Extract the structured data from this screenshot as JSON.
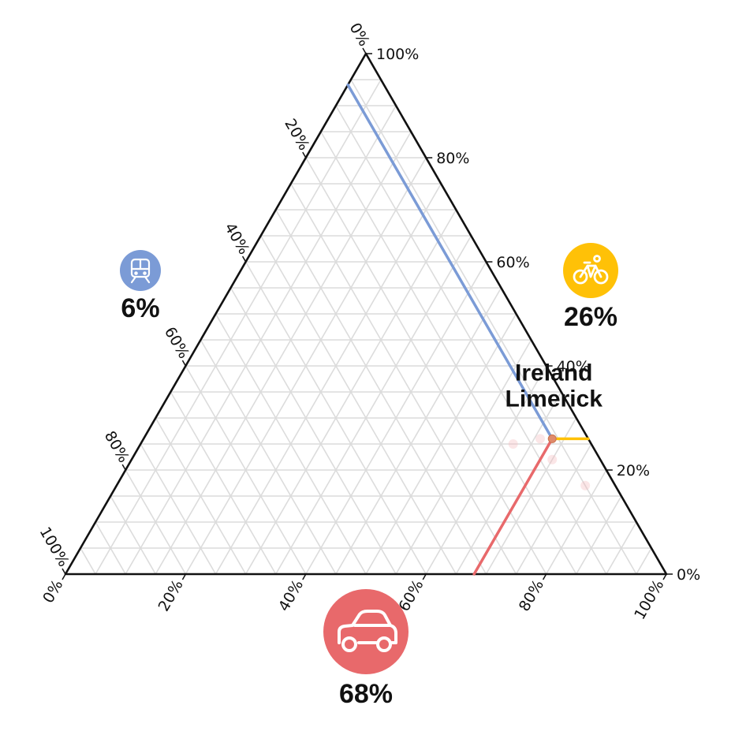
{
  "chart_data": {
    "type": "ternary",
    "axes": {
      "car": {
        "color": "#e8696b",
        "icon": "car-icon",
        "ticks": [
          "0%",
          "20%",
          "40%",
          "60%",
          "80%",
          "100%"
        ],
        "total_label": "68%"
      },
      "bike": {
        "color": "#ffc107",
        "icon": "bicycle-icon",
        "ticks": [
          "0%",
          "20%",
          "40%",
          "60%",
          "80%",
          "100%"
        ],
        "total_label": "26%"
      },
      "transit": {
        "color": "#7b9bd6",
        "icon": "train-icon",
        "ticks": [
          "0%",
          "20%",
          "40%",
          "60%",
          "80%",
          "100%"
        ],
        "total_label": "6%"
      }
    },
    "grid": true,
    "points": [
      {
        "label": "Ireland",
        "car": 68,
        "bike": 26,
        "transit": 6,
        "highlight": true
      },
      {
        "label": "Limerick",
        "car": 68,
        "bike": 26,
        "transit": 6,
        "highlight": true
      }
    ],
    "faded_points": [
      {
        "car": 62,
        "bike": 25,
        "transit": 13
      },
      {
        "car": 66,
        "bike": 26,
        "transit": 8
      },
      {
        "car": 70,
        "bike": 22,
        "transit": 8
      },
      {
        "car": 78,
        "bike": 17,
        "transit": 5
      }
    ]
  }
}
